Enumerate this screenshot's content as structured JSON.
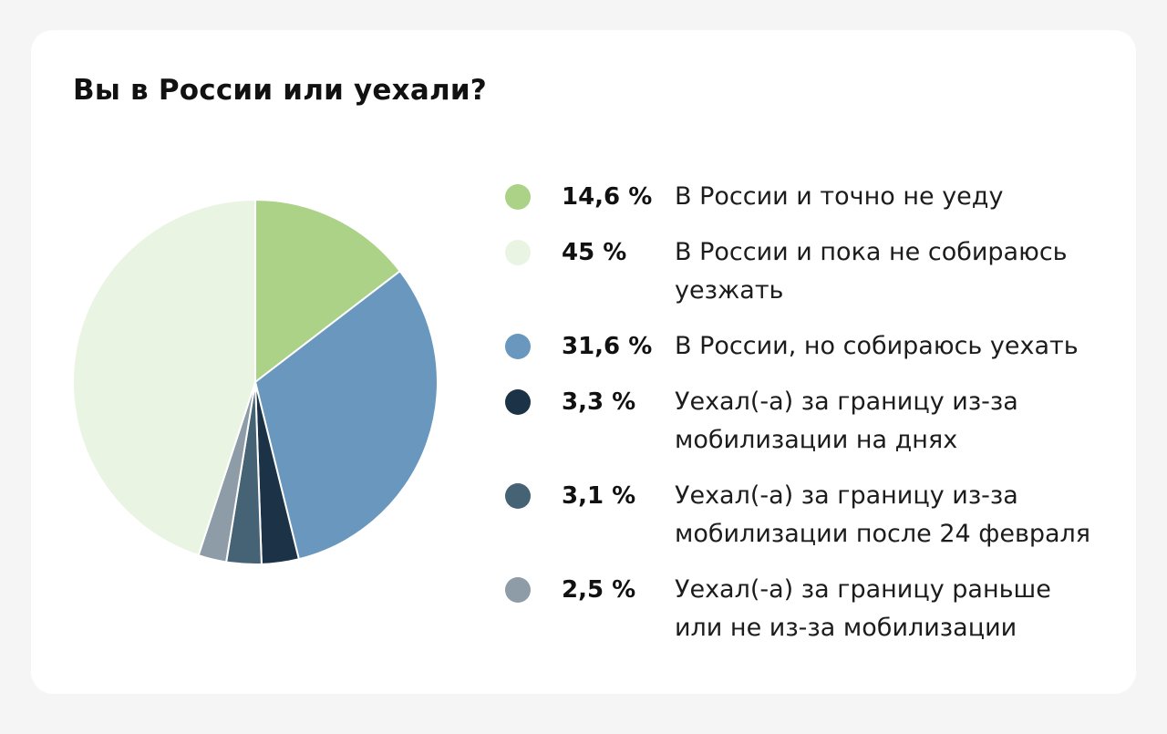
{
  "chart_data": {
    "type": "pie",
    "title": "Вы в России или уехали?",
    "legend_position": "right",
    "slices": [
      {
        "label": "В России и точно не уеду",
        "value": 14.6,
        "value_label": "14,6 %",
        "color": "#acd287"
      },
      {
        "label": "В России и пока не собираюсь уезжать",
        "value": 45,
        "value_label": "45 %",
        "color": "#eaf4e2"
      },
      {
        "label": "В России, но собираюсь уехать",
        "value": 31.6,
        "value_label": "31,6 %",
        "color": "#6997bd"
      },
      {
        "label": "Уехал(-а) за границу из-за мобилизации на днях",
        "value": 3.3,
        "value_label": "3,3 %",
        "color": "#1b3247"
      },
      {
        "label": "Уехал(-а) за границу из-за мобилизации после 24 февраля",
        "value": 3.1,
        "value_label": "3,1 %",
        "color": "#466275"
      },
      {
        "label": "Уехал(-а) за границу раньше или не из-за мобилизации",
        "value": 2.5,
        "value_label": "2,5 %",
        "color": "#8d9ca7"
      }
    ],
    "draw_order": [
      0,
      2,
      3,
      4,
      5,
      1
    ]
  }
}
